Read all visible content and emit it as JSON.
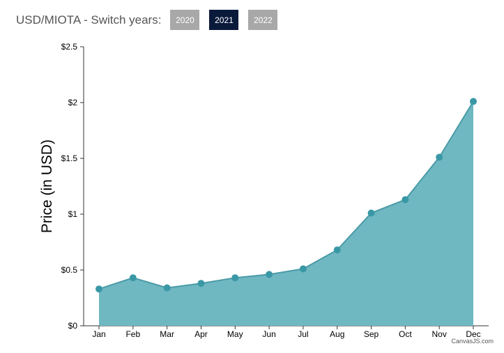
{
  "header": {
    "title": "USD/MIOTA - Switch years:",
    "years": [
      "2020",
      "2021",
      "2022"
    ],
    "active_year": "2021"
  },
  "credit": "CanvasJS.com",
  "colors": {
    "area": "#6fb8c2",
    "line": "#4a9aa6",
    "marker": "#3a98a6",
    "active_button": "#0a1a3b",
    "button": "#a8a8a8"
  },
  "chart_data": {
    "type": "area",
    "categories": [
      "Jan",
      "Feb",
      "Mar",
      "Apr",
      "May",
      "Jun",
      "Jul",
      "Aug",
      "Sep",
      "Oct",
      "Nov",
      "Dec"
    ],
    "values": [
      0.33,
      0.43,
      0.34,
      0.38,
      0.43,
      0.46,
      0.51,
      0.68,
      1.01,
      1.13,
      1.51,
      2.01
    ],
    "ylabel": "Price (in USD)",
    "ylim": [
      0,
      2.5
    ],
    "yticks": [
      0,
      0.5,
      1,
      1.5,
      2,
      2.5
    ],
    "ytick_labels": [
      "$0",
      "$0.5",
      "$1",
      "$1.5",
      "$2",
      "$2.5"
    ],
    "grid": false,
    "markers": true
  }
}
